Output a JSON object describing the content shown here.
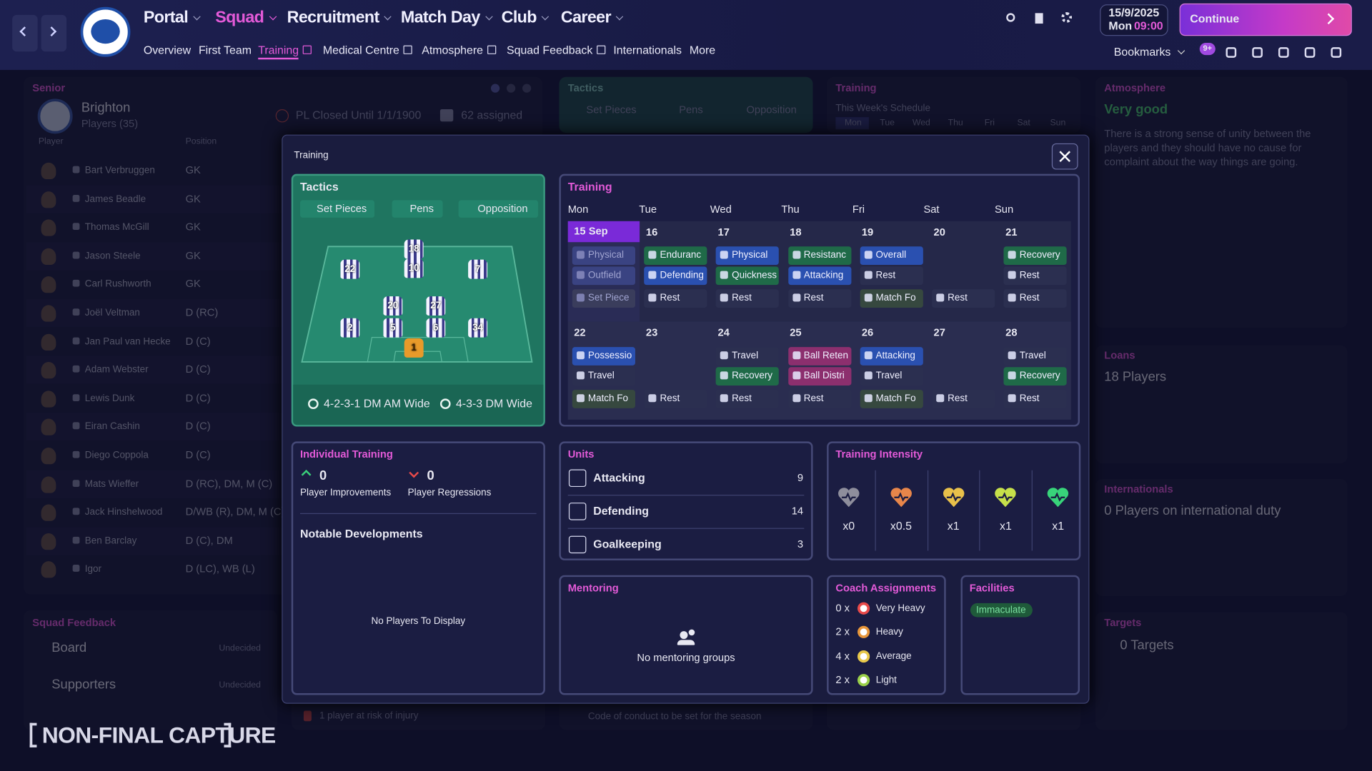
{
  "top_bar": {
    "nav": [
      "Portal",
      "Squad",
      "Recruitment",
      "Match Day",
      "Club",
      "Career"
    ],
    "subnav": [
      "Overview",
      "First Team",
      "Training",
      "Medical Centre",
      "Atmosphere",
      "Squad Feedback",
      "Internationals",
      "More"
    ],
    "date": "15/9/2025",
    "day": "Mon",
    "time": "09:00",
    "continue": "Continue",
    "bookmarks": "Bookmarks",
    "badge": "9+"
  },
  "background": {
    "senior": {
      "title": "Senior",
      "club": "Brighton",
      "players": "Players (35)",
      "status": "PL Closed Until 1/1/1900",
      "assigned": "62 assigned",
      "col_player": "Player",
      "col_position": "Position",
      "rows": [
        [
          "Bart Verbruggen",
          "GK"
        ],
        [
          "James Beadle",
          "GK"
        ],
        [
          "Thomas McGill",
          "GK"
        ],
        [
          "Jason Steele",
          "GK"
        ],
        [
          "Carl Rushworth",
          "GK"
        ],
        [
          "Joël Veltman",
          "D (RC)"
        ],
        [
          "Jan Paul van Hecke",
          "D (C)"
        ],
        [
          "Adam Webster",
          "D (C)"
        ],
        [
          "Lewis Dunk",
          "D (C)"
        ],
        [
          "Eiran Cashin",
          "D (C)"
        ],
        [
          "Diego Coppola",
          "D (C)"
        ],
        [
          "Mats Wieffer",
          "D (RC), DM, M (C)"
        ],
        [
          "Jack Hinshelwood",
          "D/WB (R), DM, M (C)"
        ],
        [
          "Ben Barclay",
          "D (C), DM"
        ],
        [
          "Igor",
          "D (LC), WB (L)"
        ]
      ]
    },
    "squad_feedback": {
      "title": "Squad Feedback",
      "board": "Board",
      "board_status": "Undecided",
      "supporters": "Supporters",
      "supporters_status": "Undecided"
    },
    "tactics": {
      "title": "Tactics",
      "buttons": [
        "Set Pieces",
        "Pens",
        "Opposition"
      ]
    },
    "training": {
      "title": "Training",
      "subtitle": "This Week's Schedule",
      "days": [
        "Mon",
        "Tue",
        "Wed",
        "Thu",
        "Fri",
        "Sat",
        "Sun"
      ]
    },
    "atmosphere": {
      "title": "Atmosphere",
      "status": "Very good",
      "text": "There is a strong sense of unity between the players and they should have no cause for complaint about the way things are going."
    },
    "loans": {
      "title": "Loans",
      "value": "18 Players"
    },
    "internationals": {
      "title": "Internationals",
      "value": "0 Players on international duty"
    },
    "targets": {
      "title": "Targets",
      "value": "0 Targets"
    },
    "injury_note": "1 player at risk of injury",
    "conduct_note": "Code of conduct to be set for the season"
  },
  "modal": {
    "title": "Training",
    "tactics": {
      "title": "Tactics",
      "buttons": [
        "Set Pieces",
        "Pens",
        "Opposition"
      ],
      "players": [
        "22",
        "18",
        "10",
        "7",
        "20",
        "27",
        "2",
        "5",
        "6",
        "34",
        "1"
      ],
      "formations": [
        "4-2-3-1 DM AM Wide",
        "4-3-3 DM Wide"
      ]
    },
    "training": {
      "title": "Training",
      "days": [
        "Mon",
        "Tue",
        "Wed",
        "Thu",
        "Fri",
        "Sat",
        "Sun"
      ],
      "weeks": [
        [
          {
            "date": "15 Sep",
            "sessions": [
              {
                "label": "Physical",
                "color": "#3a4382"
              },
              {
                "label": "Outfield",
                "color": "#3a4382"
              },
              {
                "label": "Set Piece",
                "color": "#3a3d5c"
              }
            ]
          },
          {
            "date": "16",
            "sessions": [
              {
                "label": "Enduranc",
                "color": "#1f6a48"
              },
              {
                "label": "Defending",
                "color": "#2a50b0"
              },
              {
                "label": "Rest",
                "color": "#2b2f50"
              }
            ]
          },
          {
            "date": "17",
            "sessions": [
              {
                "label": "Physical",
                "color": "#2a50b0"
              },
              {
                "label": "Quickness",
                "color": "#1f6a48"
              },
              {
                "label": "Rest",
                "color": "#2b2f50"
              }
            ]
          },
          {
            "date": "18",
            "sessions": [
              {
                "label": "Resistanc",
                "color": "#1f6a48"
              },
              {
                "label": "Attacking",
                "color": "#2a50b0"
              },
              {
                "label": "Rest",
                "color": "#2b2f50"
              }
            ]
          },
          {
            "date": "19",
            "sessions": [
              {
                "label": "Overall",
                "color": "#2a50b0"
              },
              {
                "label": "Rest",
                "color": "#2b2f50"
              },
              {
                "label": "Match Fo",
                "color": "#36483f"
              }
            ]
          },
          {
            "date": "20",
            "sessions": [
              {
                "label": "Rest",
                "color": "#2b2f50"
              }
            ]
          },
          {
            "date": "21",
            "sessions": [
              {
                "label": "Recovery",
                "color": "#1f6a48"
              },
              {
                "label": "Rest",
                "color": "#2b2f50"
              },
              {
                "label": "Rest",
                "color": "#2b2f50"
              }
            ]
          }
        ],
        [
          {
            "date": "22",
            "sessions": [
              {
                "label": "Possessio",
                "color": "#2a50b0"
              },
              {
                "label": "Travel",
                "color": "#2b2f50"
              },
              {
                "label": "Match Fo",
                "color": "#36483f"
              }
            ]
          },
          {
            "date": "23",
            "sessions": [
              {
                "label": "Rest",
                "color": "#2b2f50"
              }
            ]
          },
          {
            "date": "24",
            "sessions": [
              {
                "label": "Travel",
                "color": "#2b2f50"
              },
              {
                "label": "Recovery",
                "color": "#1f6a48"
              },
              {
                "label": "Rest",
                "color": "#2b2f50"
              }
            ]
          },
          {
            "date": "25",
            "sessions": [
              {
                "label": "Ball Reten",
                "color": "#8c2f6e"
              },
              {
                "label": "Ball Distri",
                "color": "#8c2f6e"
              },
              {
                "label": "Rest",
                "color": "#2b2f50"
              }
            ]
          },
          {
            "date": "26",
            "sessions": [
              {
                "label": "Attacking",
                "color": "#2a50b0"
              },
              {
                "label": "Travel",
                "color": "#2b2f50"
              },
              {
                "label": "Match Fo",
                "color": "#36483f"
              }
            ]
          },
          {
            "date": "27",
            "sessions": [
              {
                "label": "Rest",
                "color": "#2b2f50"
              }
            ]
          },
          {
            "date": "28",
            "sessions": [
              {
                "label": "Travel",
                "color": "#2b2f50"
              },
              {
                "label": "Recovery",
                "color": "#1f6a48"
              },
              {
                "label": "Rest",
                "color": "#2b2f50"
              }
            ]
          }
        ]
      ]
    },
    "individual": {
      "title": "Individual Training",
      "improvements": {
        "value": "0",
        "label": "Player Improvements"
      },
      "regressions": {
        "value": "0",
        "label": "Player Regressions"
      },
      "notable": "Notable Developments",
      "empty": "No Players To Display"
    },
    "units": {
      "title": "Units",
      "rows": [
        {
          "label": "Attacking",
          "value": "9"
        },
        {
          "label": "Defending",
          "value": "14"
        },
        {
          "label": "Goalkeeping",
          "value": "3"
        }
      ]
    },
    "intensity": {
      "title": "Training Intensity",
      "levels": [
        {
          "label": "x0",
          "color": "#8e8e9c"
        },
        {
          "label": "x0.5",
          "color": "#e8864a"
        },
        {
          "label": "x1",
          "color": "#e8c04a"
        },
        {
          "label": "x1",
          "color": "#c6e04a"
        },
        {
          "label": "x1",
          "color": "#38d47a"
        }
      ]
    },
    "mentoring": {
      "title": "Mentoring",
      "empty": "No mentoring groups"
    },
    "coach": {
      "title": "Coach Assignments",
      "rows": [
        {
          "count": "0 x",
          "label": "Very Heavy",
          "color": "#e84a4a"
        },
        {
          "count": "2 x",
          "label": "Heavy",
          "color": "#e8963a"
        },
        {
          "count": "4 x",
          "label": "Average",
          "color": "#e8c84a"
        },
        {
          "count": "2 x",
          "label": "Light",
          "color": "#9ad04a"
        }
      ]
    },
    "facilities": {
      "title": "Facilities",
      "value": "Immaculate"
    }
  },
  "watermark": "NON-FINAL CAPTURE"
}
